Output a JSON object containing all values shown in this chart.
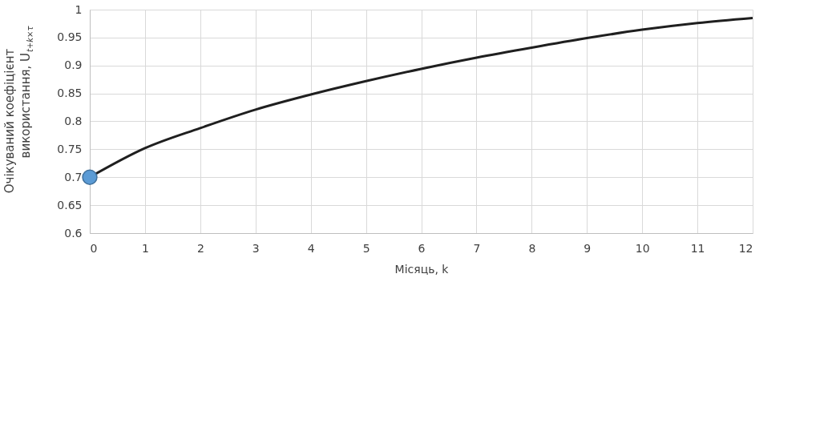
{
  "chart_data": {
    "type": "line",
    "xlabel": "Місяць, k",
    "ylabel": "Очікуваний коефіцієнт використання, U$_{t+k×τ}$",
    "x": [
      0,
      1,
      2,
      3,
      4,
      5,
      6,
      7,
      8,
      9,
      10,
      11,
      12
    ],
    "series": [
      {
        "color": "#1f1f1f",
        "marker": "none",
        "values": [
          0.7,
          0.752,
          0.788,
          0.821,
          0.848,
          0.872,
          0.894,
          0.914,
          0.932,
          0.949,
          0.964,
          0.976,
          0.985
        ]
      },
      {
        "type": "scatter",
        "color": "#5b9bd5",
        "marker": "circle",
        "x": [
          0
        ],
        "values": [
          0.7
        ]
      }
    ],
    "xlim": [
      0,
      12
    ],
    "xticks": [
      0,
      1,
      2,
      3,
      4,
      5,
      6,
      7,
      8,
      9,
      10,
      11,
      12
    ],
    "ylim": [
      0.6,
      1
    ],
    "yticks": [
      0.6,
      0.65,
      0.7,
      0.75,
      0.8,
      0.85,
      0.9,
      0.95,
      1
    ],
    "grid": true
  }
}
